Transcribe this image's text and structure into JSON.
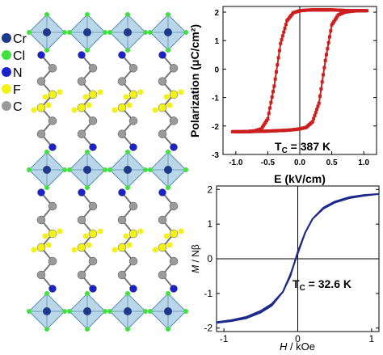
{
  "structure_panel": {
    "legend": [
      {
        "label": "Cr",
        "color": "#1f3a8a"
      },
      {
        "label": "Cl",
        "color": "#3fe03f"
      },
      {
        "label": "N",
        "color": "#1b22c9"
      },
      {
        "label": "F",
        "color": "#f2f21a"
      },
      {
        "label": "C",
        "color": "#9a9a9a"
      }
    ],
    "octahedron_color": "#7fb6d6"
  },
  "chart_data": [
    {
      "type": "line",
      "title": "",
      "xlabel": "E (kV/cm)",
      "ylabel": "Polarization (μC/cm²)",
      "xlim": [
        -1.2,
        1.2
      ],
      "ylim": [
        -3,
        2.2
      ],
      "xticks": [
        -1.0,
        -0.5,
        0.0,
        0.5,
        1.0
      ],
      "xtick_labels": [
        "-1.0",
        "-0.5",
        "0.0",
        "0.5",
        "1.0"
      ],
      "yticks": [
        -3,
        -2,
        -1,
        0,
        1,
        2
      ],
      "ytick_labels": [
        "-3",
        "-2",
        "-1",
        "0",
        "1",
        "2"
      ],
      "annotation": {
        "prefix": "T",
        "sub": "C",
        "text": " = 387 K"
      },
      "color": "#cc1f1f",
      "grid": false,
      "series": [
        {
          "name": "",
          "x": [
            -1.05,
            -0.9,
            -0.8,
            -0.7,
            -0.6,
            -0.5,
            -0.4,
            -0.3,
            -0.2,
            -0.1,
            0.0,
            0.1,
            0.2,
            0.3,
            0.4,
            0.5,
            0.6,
            0.7,
            0.8,
            0.9,
            1.05
          ],
          "y": [
            -2.2,
            -2.2,
            -2.19,
            -2.17,
            -2.1,
            -1.75,
            -0.6,
            0.9,
            1.7,
            1.98,
            2.05,
            2.07,
            2.08,
            2.08,
            2.08,
            2.08,
            2.07,
            2.06,
            2.05,
            2.05,
            2.05
          ]
        },
        {
          "name": "",
          "x": [
            1.05,
            0.9,
            0.8,
            0.7,
            0.6,
            0.5,
            0.4,
            0.3,
            0.2,
            0.1,
            0.0,
            -0.1,
            -0.2,
            -0.3,
            -0.4,
            -0.5,
            -0.6,
            -0.7,
            -0.8,
            -0.9,
            -1.05
          ],
          "y": [
            2.05,
            2.05,
            2.03,
            2.0,
            1.9,
            1.55,
            0.3,
            -1.2,
            -1.85,
            -2.05,
            -2.1,
            -2.13,
            -2.15,
            -2.16,
            -2.17,
            -2.18,
            -2.19,
            -2.19,
            -2.2,
            -2.2,
            -2.2
          ]
        }
      ]
    },
    {
      "type": "line",
      "title": "",
      "xlabel_italic": "H",
      "xlabel_rest": " / kOe",
      "ylabel_italic": "M",
      "ylabel_rest": " / Nβ",
      "xlim": [
        -1.1,
        1.1
      ],
      "ylim": [
        -2.1,
        2.1
      ],
      "xticks": [
        -1,
        0,
        1
      ],
      "xtick_labels": [
        "-1",
        "0",
        "1"
      ],
      "yticks": [
        -2,
        -1,
        0,
        1,
        2
      ],
      "ytick_labels": [
        "-2",
        "-1",
        "0",
        "1",
        "2"
      ],
      "annotation": {
        "prefix": "T",
        "sub": "C",
        "text": " = 32.6 K"
      },
      "color": "#1c2a8c",
      "grid": false,
      "series": [
        {
          "name": "",
          "x": [
            -1.1,
            -0.9,
            -0.7,
            -0.5,
            -0.35,
            -0.2,
            -0.1,
            0.0,
            0.05,
            0.1,
            0.2,
            0.35,
            0.5,
            0.7,
            0.9,
            1.1
          ],
          "y": [
            -1.85,
            -1.8,
            -1.72,
            -1.55,
            -1.35,
            -0.95,
            -0.45,
            0.15,
            0.45,
            0.75,
            1.15,
            1.45,
            1.62,
            1.75,
            1.82,
            1.87
          ]
        },
        {
          "name": "",
          "x": [
            1.1,
            0.9,
            0.7,
            0.5,
            0.35,
            0.2,
            0.1,
            0.0,
            -0.05,
            -0.1,
            -0.2,
            -0.35,
            -0.5,
            -0.7,
            -0.9,
            -1.1
          ],
          "y": [
            1.87,
            1.84,
            1.78,
            1.65,
            1.48,
            1.15,
            0.75,
            0.2,
            -0.15,
            -0.5,
            -0.95,
            -1.3,
            -1.5,
            -1.68,
            -1.77,
            -1.83
          ]
        }
      ]
    }
  ]
}
